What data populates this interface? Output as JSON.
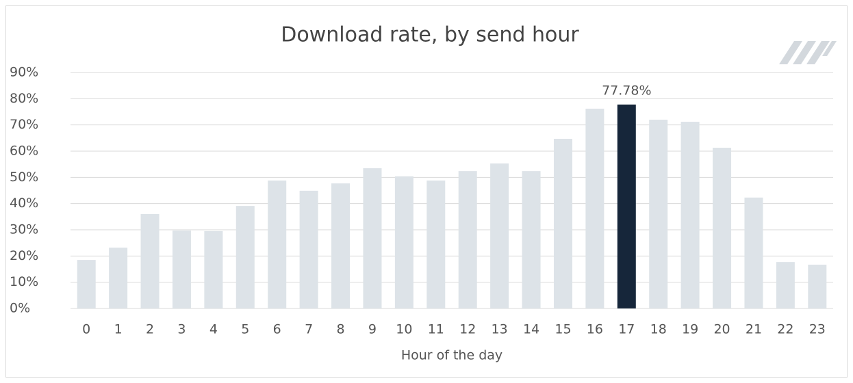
{
  "chart_data": {
    "type": "bar",
    "title": "Download rate, by send hour",
    "x_label": "Hour of the day",
    "categories": [
      "0",
      "1",
      "2",
      "3",
      "4",
      "5",
      "6",
      "7",
      "8",
      "9",
      "10",
      "11",
      "12",
      "13",
      "14",
      "15",
      "16",
      "17",
      "18",
      "19",
      "20",
      "21",
      "22",
      "23"
    ],
    "values": [
      18.5,
      23.2,
      36,
      29.7,
      29.5,
      39.1,
      48.8,
      44.9,
      47.7,
      53.5,
      50.4,
      48.8,
      52.4,
      55.3,
      52.4,
      64.7,
      76.2,
      77.78,
      72,
      71.2,
      61.3,
      42.3,
      17.7,
      16.7
    ],
    "value_labels": [
      null,
      null,
      null,
      null,
      null,
      null,
      null,
      null,
      null,
      null,
      null,
      null,
      null,
      null,
      null,
      null,
      null,
      "77.78%",
      null,
      null,
      null,
      null,
      null,
      null
    ],
    "colors": [
      "#dde3e8",
      "#dde3e8",
      "#dde3e8",
      "#dde3e8",
      "#dde3e8",
      "#dde3e8",
      "#dde3e8",
      "#dde3e8",
      "#dde3e8",
      "#dde3e8",
      "#dde3e8",
      "#dde3e8",
      "#dde3e8",
      "#dde3e8",
      "#dde3e8",
      "#dde3e8",
      "#dde3e8",
      "#16263a",
      "#dde3e8",
      "#dde3e8",
      "#dde3e8",
      "#dde3e8",
      "#dde3e8",
      "#dde3e8"
    ],
    "ylim": [
      0,
      90
    ],
    "yticks": [
      {
        "value": 0,
        "label": "0%"
      },
      {
        "value": 10,
        "label": "10%"
      },
      {
        "value": 20,
        "label": "20%"
      },
      {
        "value": 30,
        "label": "30%"
      },
      {
        "value": 40,
        "label": "40%"
      },
      {
        "value": 50,
        "label": "50%"
      },
      {
        "value": 60,
        "label": "60%"
      },
      {
        "value": 70,
        "label": "70%"
      },
      {
        "value": 80,
        "label": "80%"
      },
      {
        "value": 90,
        "label": "90%"
      }
    ],
    "grid": true
  }
}
